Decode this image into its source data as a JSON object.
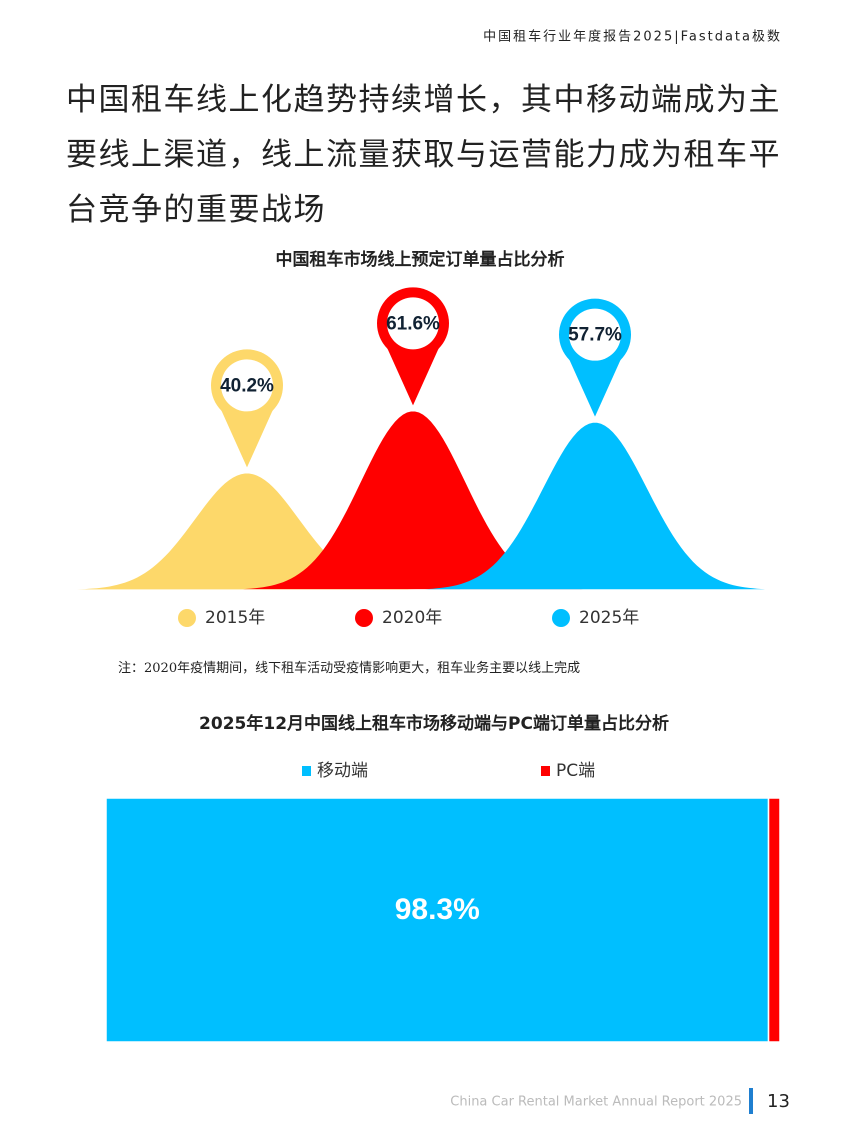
{
  "header": "中国租车行业年度报告2025|Fastdata极数",
  "headline": "中国租车线上化趋势持续增长，其中移动端成为主要线上渠道，线上流量获取与运营能力成为租车平台竞争的重要战场",
  "note": "注：2020年疫情期间，线下租车活动受疫情影响更大，租车业务主要以线上完成",
  "chart_data": [
    {
      "type": "bell",
      "title": "中国租车市场线上预定订单量占比分析",
      "categories": [
        "2015年",
        "2020年",
        "2025年"
      ],
      "values": [
        40.2,
        61.6,
        57.7
      ],
      "value_labels": [
        "40.2%",
        "61.6%",
        "57.7%"
      ],
      "colors": [
        "#fdd86a",
        "#ff0000",
        "#00bfff"
      ],
      "legend": "bottom"
    },
    {
      "type": "stacked-bar",
      "title": "2025年12月中国线上租车市场移动端与PC端订单量占比分析",
      "categories": [
        null
      ],
      "series": [
        {
          "name": "移动端",
          "color": "#00bfff",
          "values": [
            98.3
          ],
          "value_labels": [
            "98.3%"
          ]
        },
        {
          "name": "PC端",
          "color": "#ff0000",
          "values": [
            1.7
          ]
        }
      ],
      "legend": "top"
    }
  ],
  "footer": {
    "text": "China Car Rental Market Annual Report 2025",
    "page": 13
  }
}
